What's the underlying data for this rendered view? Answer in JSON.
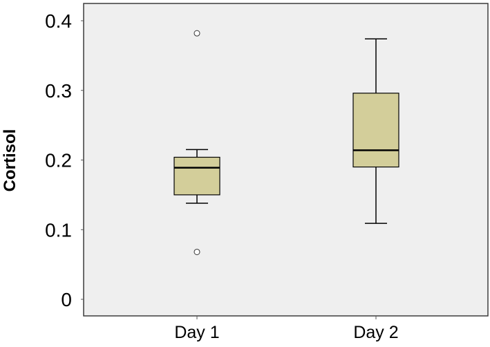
{
  "chart_data": {
    "type": "boxplot",
    "title": "",
    "xlabel": "",
    "ylabel": "Cortisol",
    "ylim": [
      0,
      0.4
    ],
    "yticks": [
      "0",
      "0.1",
      "0.2",
      "0.3",
      "0.4"
    ],
    "categories": [
      "Day 1",
      "Day 2"
    ],
    "boxes": [
      {
        "category": "Day 1",
        "whisker_low": 0.138,
        "q1": 0.15,
        "median": 0.189,
        "q3": 0.204,
        "whisker_high": 0.215,
        "outliers": [
          0.382,
          0.068
        ]
      },
      {
        "category": "Day 2",
        "whisker_low": 0.109,
        "q1": 0.19,
        "median": 0.214,
        "q3": 0.296,
        "whisker_high": 0.374,
        "outliers": []
      }
    ],
    "grid": false,
    "colors": {
      "plot_background": "#efefef",
      "box_fill": "#d3ce9a",
      "stroke": "#000000"
    }
  }
}
